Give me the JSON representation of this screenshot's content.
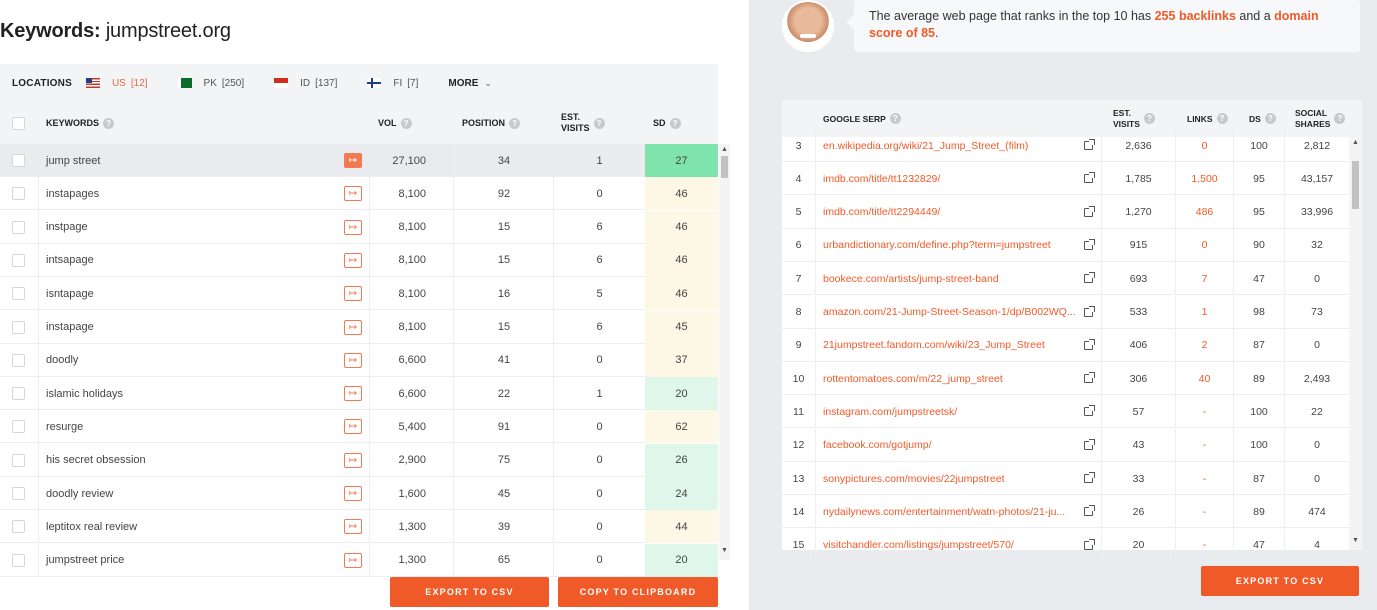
{
  "title": {
    "label": "Keywords:",
    "domain": "jumpstreet.org"
  },
  "locations": {
    "label": "LOCATIONS",
    "items": [
      {
        "code": "US",
        "count": "[12]",
        "active": true
      },
      {
        "code": "PK",
        "count": "[250]",
        "active": false
      },
      {
        "code": "ID",
        "count": "[137]",
        "active": false
      },
      {
        "code": "FI",
        "count": "[7]",
        "active": false
      }
    ],
    "more": "MORE"
  },
  "keywords_table": {
    "headers": {
      "keywords": "KEYWORDS",
      "vol": "VOL",
      "position": "POSITION",
      "est_visits_1": "EST.",
      "est_visits_2": "VISITS",
      "sd": "SD"
    },
    "rows": [
      {
        "keyword": "jump street",
        "vol": "27,100",
        "position": "34",
        "visits": "1",
        "sd": "27",
        "selected": true
      },
      {
        "keyword": "instapages",
        "vol": "8,100",
        "position": "92",
        "visits": "0",
        "sd": "46"
      },
      {
        "keyword": "instpage",
        "vol": "8,100",
        "position": "15",
        "visits": "6",
        "sd": "46"
      },
      {
        "keyword": "intsapage",
        "vol": "8,100",
        "position": "15",
        "visits": "6",
        "sd": "46"
      },
      {
        "keyword": "isntapage",
        "vol": "8,100",
        "position": "16",
        "visits": "5",
        "sd": "46"
      },
      {
        "keyword": "instapage",
        "vol": "8,100",
        "position": "15",
        "visits": "6",
        "sd": "45"
      },
      {
        "keyword": "doodly",
        "vol": "6,600",
        "position": "41",
        "visits": "0",
        "sd": "37"
      },
      {
        "keyword": "islamic holidays",
        "vol": "6,600",
        "position": "22",
        "visits": "1",
        "sd": "20"
      },
      {
        "keyword": "resurge",
        "vol": "5,400",
        "position": "91",
        "visits": "0",
        "sd": "62"
      },
      {
        "keyword": "his secret obsession",
        "vol": "2,900",
        "position": "75",
        "visits": "0",
        "sd": "26"
      },
      {
        "keyword": "doodly review",
        "vol": "1,600",
        "position": "45",
        "visits": "0",
        "sd": "24"
      },
      {
        "keyword": "leptitox real review",
        "vol": "1,300",
        "position": "39",
        "visits": "0",
        "sd": "44"
      },
      {
        "keyword": "jumpstreet price",
        "vol": "1,300",
        "position": "65",
        "visits": "0",
        "sd": "20"
      }
    ]
  },
  "buttons": {
    "export_csv": "EXPORT TO CSV",
    "copy_clipboard": "COPY TO CLIPBOARD",
    "export_csv_right": "EXPORT TO CSV"
  },
  "bubble": {
    "text_1": "The average web page that ranks in the top 10 has ",
    "hl_1": "255 backlinks",
    "text_2": " and a ",
    "hl_2": "domain score of 85",
    "text_3": "."
  },
  "serp_table": {
    "headers": {
      "serp": "GOOGLE SERP",
      "est_1": "EST.",
      "est_2": "VISITS",
      "links": "LINKS",
      "ds": "DS",
      "social_1": "SOCIAL",
      "social_2": "SHARES"
    },
    "rows": [
      {
        "rank": "3",
        "url": "en.wikipedia.org/wiki/21_Jump_Street_(film)",
        "visits": "2,636",
        "links": "0",
        "ds": "100",
        "shares": "2,812"
      },
      {
        "rank": "4",
        "url": "imdb.com/title/tt1232829/",
        "visits": "1,785",
        "links": "1,500",
        "ds": "95",
        "shares": "43,157"
      },
      {
        "rank": "5",
        "url": "imdb.com/title/tt2294449/",
        "visits": "1,270",
        "links": "486",
        "ds": "95",
        "shares": "33,996"
      },
      {
        "rank": "6",
        "url": "urbandictionary.com/define.php?term=jumpstreet",
        "visits": "915",
        "links": "0",
        "ds": "90",
        "shares": "32"
      },
      {
        "rank": "7",
        "url": "bookece.com/artists/jump-street-band",
        "visits": "693",
        "links": "7",
        "ds": "47",
        "shares": "0"
      },
      {
        "rank": "8",
        "url": "amazon.com/21-Jump-Street-Season-1/dp/B002WQ...",
        "visits": "533",
        "links": "1",
        "ds": "98",
        "shares": "73"
      },
      {
        "rank": "9",
        "url": "21jumpstreet.fandom.com/wiki/23_Jump_Street",
        "visits": "406",
        "links": "2",
        "ds": "87",
        "shares": "0"
      },
      {
        "rank": "10",
        "url": "rottentomatoes.com/m/22_jump_street",
        "visits": "306",
        "links": "40",
        "ds": "89",
        "shares": "2,493"
      },
      {
        "rank": "11",
        "url": "instagram.com/jumpstreetsk/",
        "visits": "57",
        "links": "-",
        "ds": "100",
        "shares": "22"
      },
      {
        "rank": "12",
        "url": "facebook.com/gotjump/",
        "visits": "43",
        "links": "-",
        "ds": "100",
        "shares": "0"
      },
      {
        "rank": "13",
        "url": "sonypictures.com/movies/22jumpstreet",
        "visits": "33",
        "links": "-",
        "ds": "87",
        "shares": "0"
      },
      {
        "rank": "14",
        "url": "nydailynews.com/entertainment/watn-photos/21-ju...",
        "visits": "26",
        "links": "-",
        "ds": "89",
        "shares": "474"
      },
      {
        "rank": "15",
        "url": "visitchandler.com/listings/jumpstreet/570/",
        "visits": "20",
        "links": "-",
        "ds": "47",
        "shares": "4"
      }
    ]
  },
  "colors": {
    "accent": "#f05a28",
    "sd_green": "#dff7ea",
    "sd_yellow": "#fdf7e6",
    "sd_selected": "#7fe3ac"
  }
}
